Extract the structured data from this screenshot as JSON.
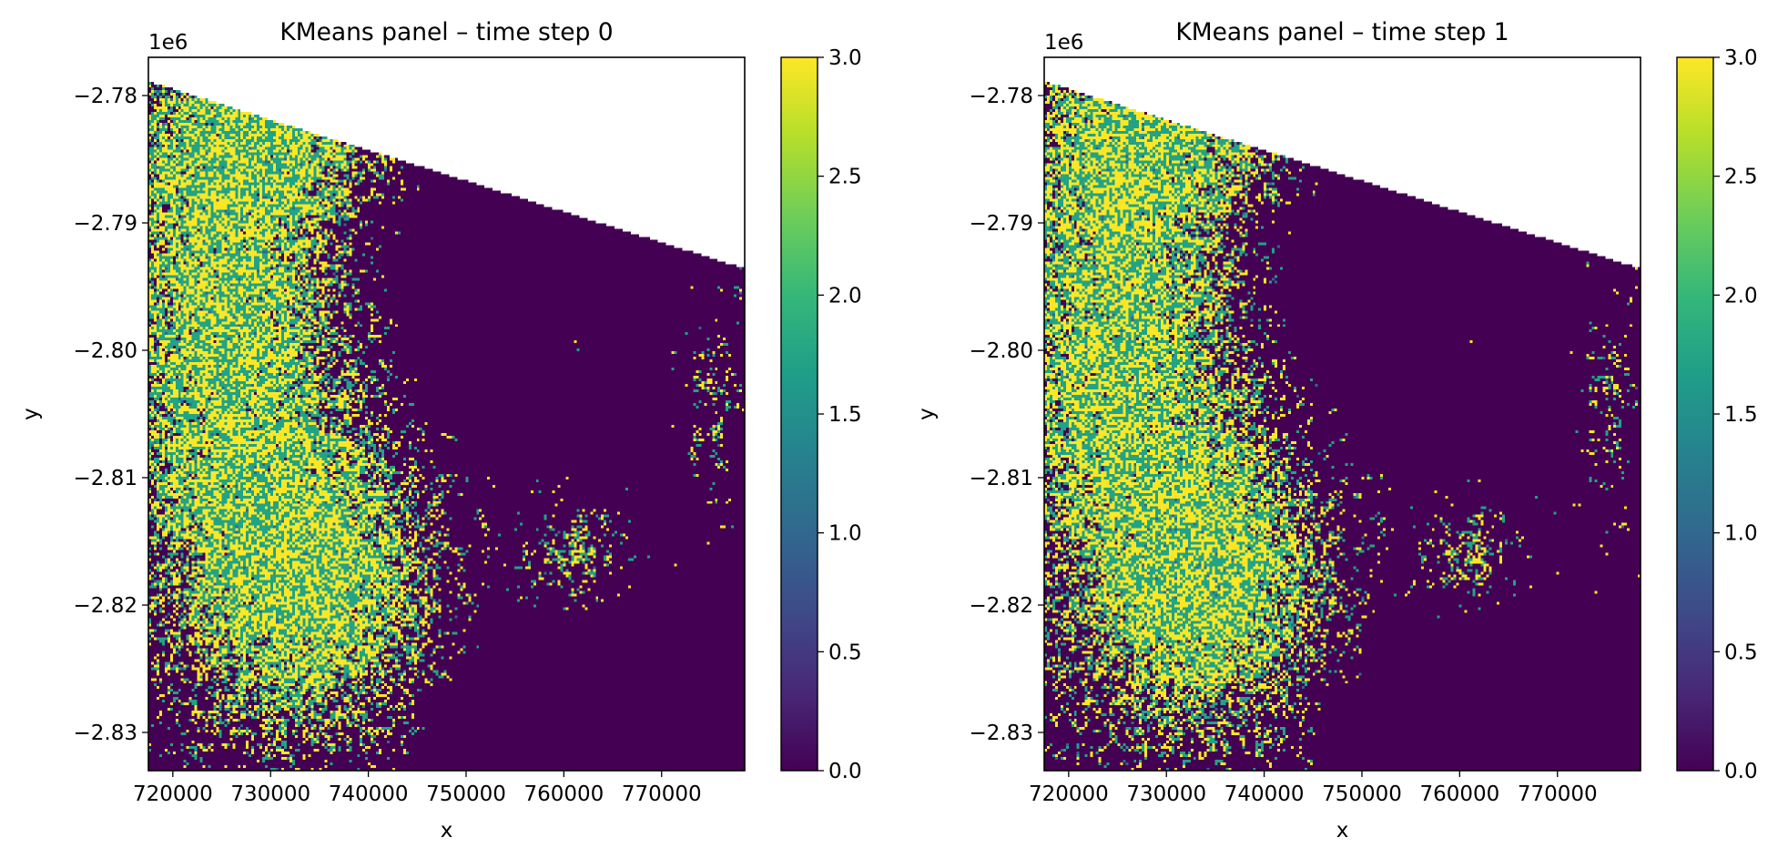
{
  "chart_data": [
    {
      "type": "heatmap",
      "title": "KMeans panel – time step 0",
      "xlabel": "x",
      "ylabel": "y",
      "y_offset_label": "1e6",
      "xlim": [
        717500,
        778500
      ],
      "ylim": [
        -2.833,
        -2.777
      ],
      "xticks": [
        720000,
        730000,
        740000,
        750000,
        760000,
        770000
      ],
      "xtick_labels": [
        "720000",
        "730000",
        "740000",
        "750000",
        "760000",
        "770000"
      ],
      "yticks": [
        -2.78,
        -2.79,
        -2.8,
        -2.81,
        -2.82,
        -2.83
      ],
      "ytick_labels": [
        "−2.78",
        "−2.79",
        "−2.80",
        "−2.81",
        "−2.82",
        "−2.83"
      ],
      "colorbar": {
        "colormap": "viridis",
        "range": [
          0.0,
          3.0
        ],
        "ticks": [
          0.0,
          0.5,
          1.0,
          1.5,
          2.0,
          2.5,
          3.0
        ],
        "tick_labels": [
          "0.0",
          "0.5",
          "1.0",
          "1.5",
          "2.0",
          "2.5",
          "3.0"
        ]
      },
      "classes": [
        0,
        1,
        2,
        3
      ],
      "nodata_region": "upper-right triangle (top edge from -2.7788e6 at left to -2.7935e6 at right)",
      "grid": false
    },
    {
      "type": "heatmap",
      "title": "KMeans panel – time step 1",
      "xlabel": "x",
      "ylabel": "y",
      "y_offset_label": "1e6",
      "xlim": [
        717500,
        778500
      ],
      "ylim": [
        -2.833,
        -2.777
      ],
      "xticks": [
        720000,
        730000,
        740000,
        750000,
        760000,
        770000
      ],
      "xtick_labels": [
        "720000",
        "730000",
        "740000",
        "750000",
        "760000",
        "770000"
      ],
      "yticks": [
        -2.78,
        -2.79,
        -2.8,
        -2.81,
        -2.82,
        -2.83
      ],
      "ytick_labels": [
        "−2.78",
        "−2.79",
        "−2.80",
        "−2.81",
        "−2.82",
        "−2.83"
      ],
      "colorbar": {
        "colormap": "viridis",
        "range": [
          0.0,
          3.0
        ],
        "ticks": [
          0.0,
          0.5,
          1.0,
          1.5,
          2.0,
          2.5,
          3.0
        ],
        "tick_labels": [
          "0.0",
          "0.5",
          "1.0",
          "1.5",
          "2.0",
          "2.5",
          "3.0"
        ]
      },
      "classes": [
        0,
        1,
        2,
        3
      ],
      "nodata_region": "upper-right triangle (top edge from -2.7788e6 at left to -2.7935e6 at right)",
      "grid": false
    }
  ],
  "colors": {
    "class_0": "#440154",
    "class_1": "#31688e",
    "class_2": "#21a386",
    "class_3": "#fde725",
    "viridis_stops": [
      "#440154",
      "#482878",
      "#3e4a89",
      "#31688e",
      "#26828e",
      "#1f9e89",
      "#35b779",
      "#6ece58",
      "#b5de2b",
      "#fde725"
    ]
  }
}
